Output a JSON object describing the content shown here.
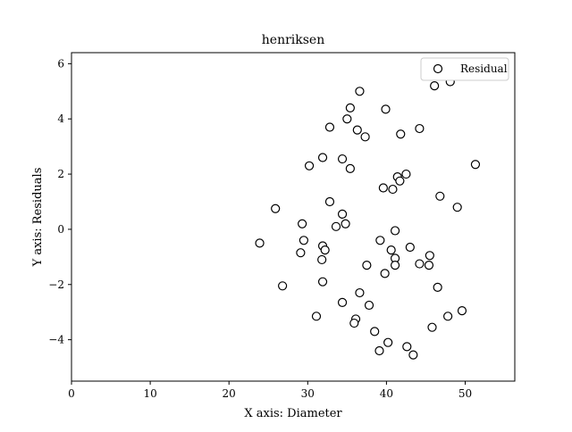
{
  "chart_data": {
    "type": "scatter",
    "title": "henriksen",
    "xlabel": "X axis: Diameter",
    "ylabel": "Y axis: Residuals",
    "xlim": [
      0,
      56.3
    ],
    "ylim": [
      -5.5,
      6.4
    ],
    "xticks": [
      0,
      10,
      20,
      30,
      40,
      50
    ],
    "yticks": [
      -4,
      -2,
      0,
      2,
      4,
      6
    ],
    "xtick_labels": [
      "0",
      "10",
      "20",
      "30",
      "40",
      "50"
    ],
    "ytick_labels": [
      "−4",
      "−2",
      "0",
      "2",
      "4",
      "6"
    ],
    "grid": false,
    "legend_position": "top-right",
    "marker": "open-circle",
    "colors": {
      "marker_edge": "#000000",
      "marker_face": "#ffffff",
      "axes": "#000000"
    },
    "series": [
      {
        "name": "Residual",
        "points": [
          {
            "x": 36.6,
            "y": 5.0
          },
          {
            "x": 48.1,
            "y": 5.35
          },
          {
            "x": 46.1,
            "y": 5.2
          },
          {
            "x": 35.4,
            "y": 4.4
          },
          {
            "x": 39.9,
            "y": 4.35
          },
          {
            "x": 35.0,
            "y": 4.0
          },
          {
            "x": 32.8,
            "y": 3.7
          },
          {
            "x": 36.3,
            "y": 3.6
          },
          {
            "x": 37.3,
            "y": 3.35
          },
          {
            "x": 41.8,
            "y": 3.45
          },
          {
            "x": 44.2,
            "y": 3.65
          },
          {
            "x": 31.9,
            "y": 2.6
          },
          {
            "x": 34.4,
            "y": 2.55
          },
          {
            "x": 30.2,
            "y": 2.3
          },
          {
            "x": 35.4,
            "y": 2.2
          },
          {
            "x": 51.3,
            "y": 2.35
          },
          {
            "x": 41.4,
            "y": 1.9
          },
          {
            "x": 42.5,
            "y": 2.0
          },
          {
            "x": 41.7,
            "y": 1.75
          },
          {
            "x": 39.6,
            "y": 1.5
          },
          {
            "x": 40.8,
            "y": 1.45
          },
          {
            "x": 46.8,
            "y": 1.2
          },
          {
            "x": 32.8,
            "y": 1.0
          },
          {
            "x": 25.9,
            "y": 0.75
          },
          {
            "x": 49.0,
            "y": 0.8
          },
          {
            "x": 34.4,
            "y": 0.55
          },
          {
            "x": 29.3,
            "y": 0.2
          },
          {
            "x": 34.8,
            "y": 0.2
          },
          {
            "x": 33.6,
            "y": 0.1
          },
          {
            "x": 41.1,
            "y": -0.05
          },
          {
            "x": 23.9,
            "y": -0.5
          },
          {
            "x": 29.5,
            "y": -0.4
          },
          {
            "x": 39.2,
            "y": -0.4
          },
          {
            "x": 31.9,
            "y": -0.6
          },
          {
            "x": 32.2,
            "y": -0.75
          },
          {
            "x": 40.6,
            "y": -0.75
          },
          {
            "x": 43.0,
            "y": -0.65
          },
          {
            "x": 29.1,
            "y": -0.85
          },
          {
            "x": 45.5,
            "y": -0.95
          },
          {
            "x": 31.8,
            "y": -1.1
          },
          {
            "x": 41.1,
            "y": -1.05
          },
          {
            "x": 37.5,
            "y": -1.3
          },
          {
            "x": 41.1,
            "y": -1.3
          },
          {
            "x": 44.2,
            "y": -1.25
          },
          {
            "x": 45.4,
            "y": -1.3
          },
          {
            "x": 39.8,
            "y": -1.6
          },
          {
            "x": 31.9,
            "y": -1.9
          },
          {
            "x": 26.8,
            "y": -2.05
          },
          {
            "x": 46.5,
            "y": -2.1
          },
          {
            "x": 36.6,
            "y": -2.3
          },
          {
            "x": 34.4,
            "y": -2.65
          },
          {
            "x": 37.8,
            "y": -2.75
          },
          {
            "x": 49.6,
            "y": -2.95
          },
          {
            "x": 31.1,
            "y": -3.15
          },
          {
            "x": 36.1,
            "y": -3.25
          },
          {
            "x": 47.8,
            "y": -3.15
          },
          {
            "x": 35.9,
            "y": -3.4
          },
          {
            "x": 45.8,
            "y": -3.55
          },
          {
            "x": 38.5,
            "y": -3.7
          },
          {
            "x": 40.2,
            "y": -4.1
          },
          {
            "x": 42.6,
            "y": -4.25
          },
          {
            "x": 39.1,
            "y": -4.4
          },
          {
            "x": 43.4,
            "y": -4.55
          }
        ]
      }
    ]
  }
}
